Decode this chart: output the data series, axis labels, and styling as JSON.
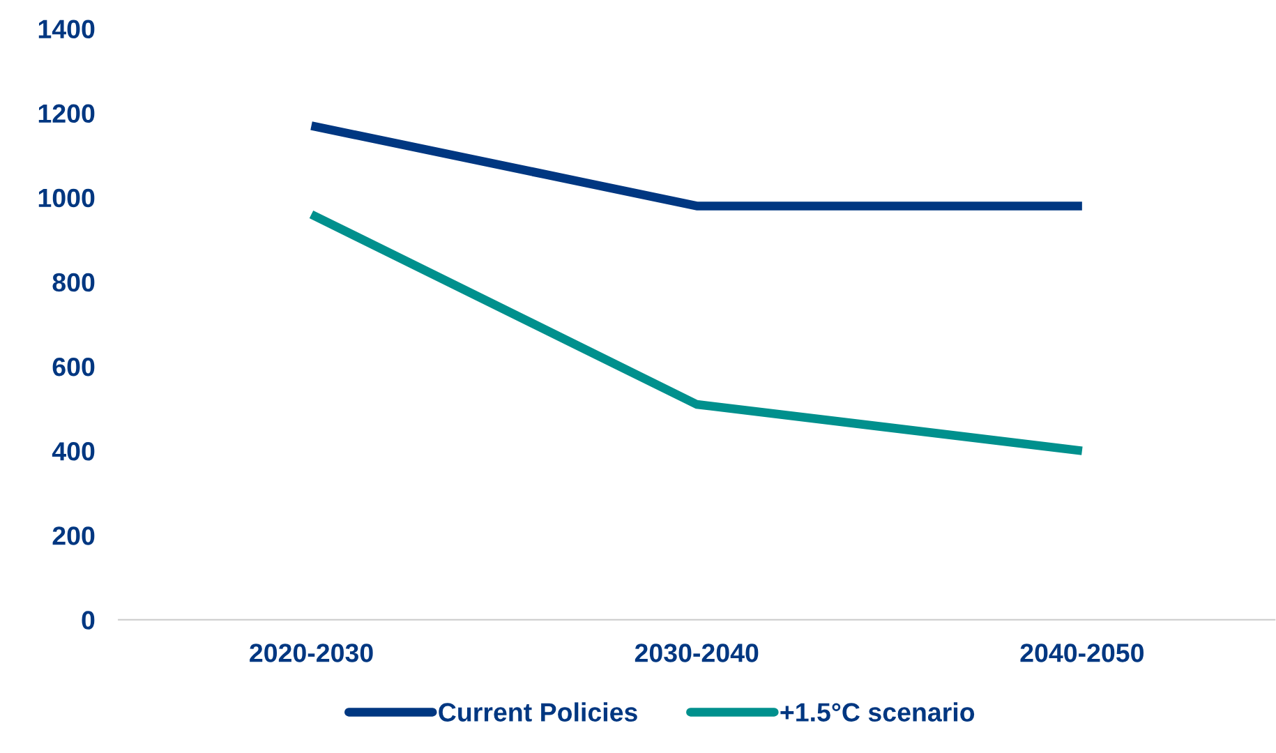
{
  "chart_data": {
    "type": "line",
    "categories": [
      "2020-2030",
      "2030-2040",
      "2040-2050"
    ],
    "series": [
      {
        "name": "Current Policies",
        "color": "#003781",
        "values": [
          1170,
          980,
          980
        ]
      },
      {
        "name": "+1.5°C scenario",
        "color": "#00908d",
        "values": [
          960,
          510,
          400
        ]
      }
    ],
    "ylim": [
      0,
      1400
    ],
    "yticks": [
      0,
      200,
      400,
      600,
      800,
      1000,
      1200,
      1400
    ],
    "grid": false,
    "legend": "bottom",
    "marker": "none",
    "line_style": "solid"
  }
}
